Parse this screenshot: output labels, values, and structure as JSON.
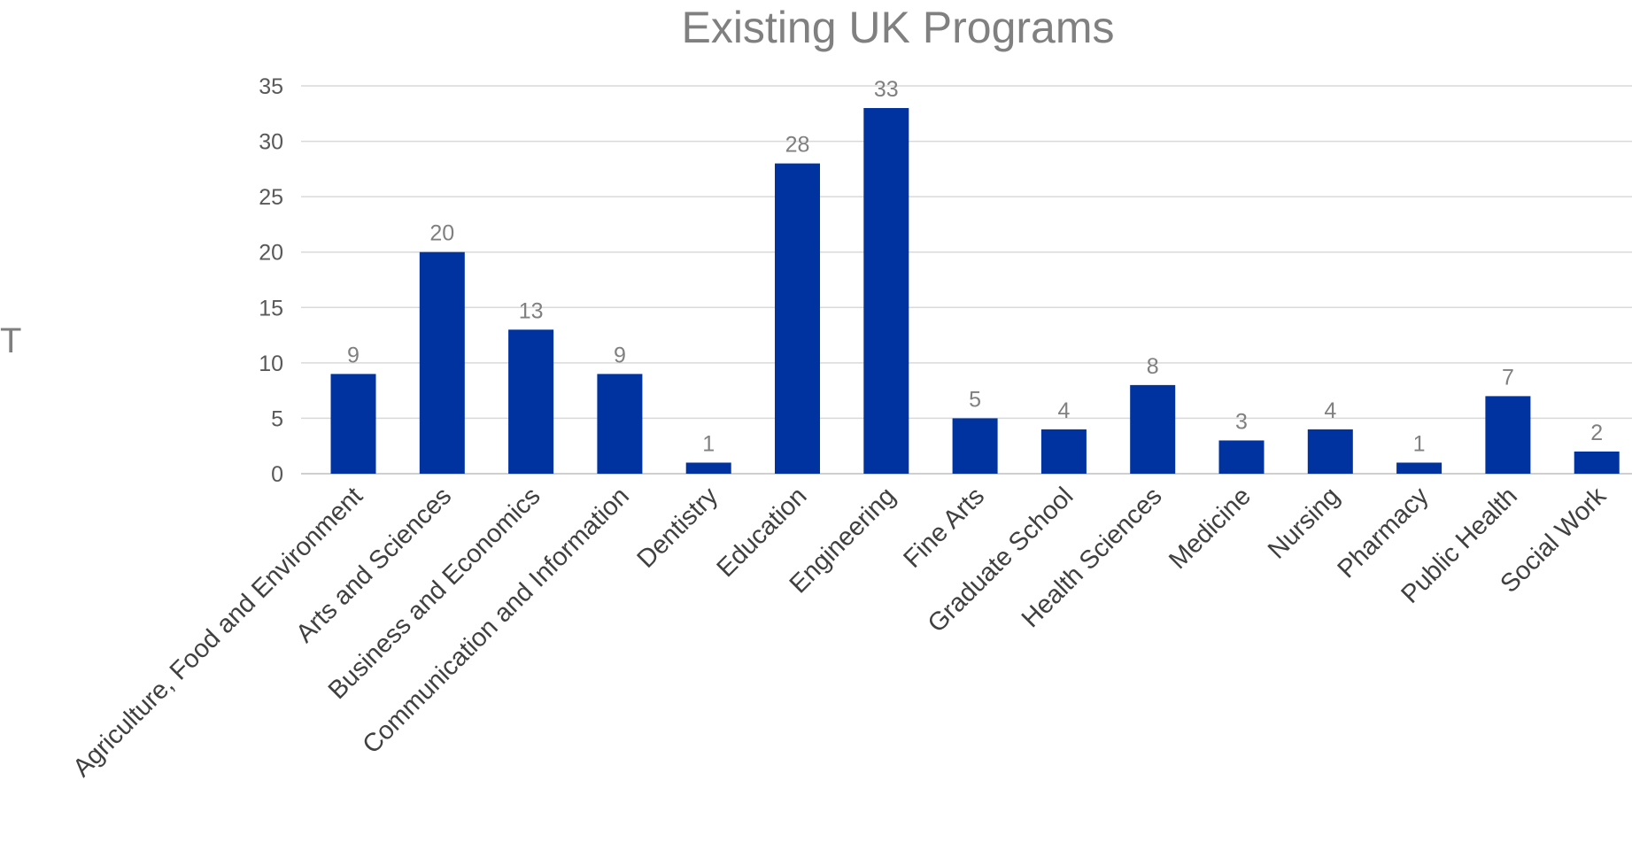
{
  "chart_data": {
    "type": "bar",
    "title": "Existing UK Programs",
    "xlabel": "",
    "ylabel": "",
    "ylim": [
      0,
      35
    ],
    "yticks": [
      0,
      5,
      10,
      15,
      20,
      25,
      30,
      35
    ],
    "grid": true,
    "legend": "none",
    "bar_color": "#0033A0",
    "categories": [
      "Agriculture, Food and Environment",
      "Arts and Sciences",
      "Business and Economics",
      "Communication and Information",
      "Dentistry",
      "Education",
      "Engineering",
      "Fine Arts",
      "Graduate School",
      "Health Sciences",
      "Medicine",
      "Nursing",
      "Pharmacy",
      "Public Health",
      "Social Work"
    ],
    "values": [
      9,
      20,
      13,
      9,
      1,
      28,
      33,
      5,
      4,
      8,
      3,
      4,
      1,
      7,
      2
    ]
  },
  "stray_glyph": "Т"
}
